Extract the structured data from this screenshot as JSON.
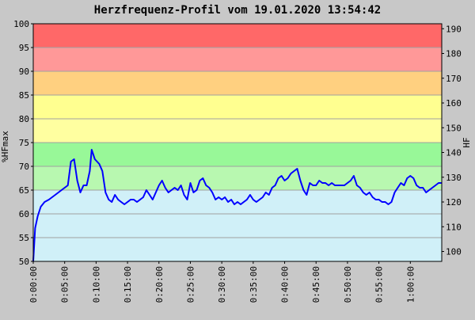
{
  "chart_data": {
    "type": "line",
    "title": "Herzfrequenz-Profil vom 19.01.2020 13:54:42",
    "ylabel_left": "%HFmax",
    "ylabel_right": "HF",
    "ylim_left": [
      50,
      100
    ],
    "ylim_right": [
      96,
      192
    ],
    "left_ticks": [
      50,
      55,
      60,
      65,
      70,
      75,
      80,
      85,
      90,
      95,
      100
    ],
    "right_ticks": [
      100,
      110,
      120,
      130,
      140,
      150,
      160,
      170,
      180,
      190
    ],
    "x_minutes_range": [
      0,
      65
    ],
    "x_ticks": [
      "0:00:00",
      "0:05:00",
      "0:10:00",
      "0:15:00",
      "0:20:00",
      "0:25:00",
      "0:30:00",
      "0:35:00",
      "0:40:00",
      "0:45:00",
      "0:50:00",
      "0:55:00",
      "1:00:00"
    ],
    "zones": [
      {
        "from": 50,
        "to": 65,
        "color": "#d0f0f8"
      },
      {
        "from": 65,
        "to": 70,
        "color": "#b8f8b0"
      },
      {
        "from": 70,
        "to": 75,
        "color": "#98f898"
      },
      {
        "from": 75,
        "to": 80,
        "color": "#ffffa0"
      },
      {
        "from": 80,
        "to": 85,
        "color": "#ffff90"
      },
      {
        "from": 85,
        "to": 90,
        "color": "#ffd080"
      },
      {
        "from": 90,
        "to": 95,
        "color": "#ff9898"
      },
      {
        "from": 95,
        "to": 100,
        "color": "#ff6868"
      }
    ],
    "series": [
      {
        "color": "#0000ff",
        "points": [
          [
            0.0,
            50.0
          ],
          [
            0.3,
            57.0
          ],
          [
            0.7,
            59.5
          ],
          [
            1.2,
            61.5
          ],
          [
            1.8,
            62.5
          ],
          [
            2.5,
            63.0
          ],
          [
            3.5,
            64.0
          ],
          [
            4.5,
            65.0
          ],
          [
            5.5,
            66.0
          ],
          [
            6.0,
            71.0
          ],
          [
            6.5,
            71.5
          ],
          [
            7.0,
            67.0
          ],
          [
            7.5,
            64.5
          ],
          [
            8.0,
            66.0
          ],
          [
            8.5,
            66.0
          ],
          [
            9.0,
            69.0
          ],
          [
            9.3,
            73.5
          ],
          [
            9.8,
            71.5
          ],
          [
            10.5,
            70.5
          ],
          [
            11.0,
            69.0
          ],
          [
            11.5,
            64.5
          ],
          [
            12.0,
            63.0
          ],
          [
            12.5,
            62.5
          ],
          [
            13.0,
            64.0
          ],
          [
            13.5,
            63.0
          ],
          [
            14.0,
            62.5
          ],
          [
            14.5,
            62.0
          ],
          [
            15.0,
            62.5
          ],
          [
            15.5,
            63.0
          ],
          [
            16.0,
            63.0
          ],
          [
            16.5,
            62.5
          ],
          [
            17.0,
            63.0
          ],
          [
            17.5,
            63.5
          ],
          [
            18.0,
            65.0
          ],
          [
            18.5,
            64.0
          ],
          [
            19.0,
            63.0
          ],
          [
            19.5,
            64.5
          ],
          [
            20.0,
            66.0
          ],
          [
            20.5,
            67.0
          ],
          [
            21.0,
            65.5
          ],
          [
            21.5,
            64.5
          ],
          [
            22.0,
            65.0
          ],
          [
            22.5,
            65.5
          ],
          [
            23.0,
            65.0
          ],
          [
            23.5,
            66.0
          ],
          [
            24.0,
            64.0
          ],
          [
            24.5,
            63.0
          ],
          [
            25.0,
            66.5
          ],
          [
            25.5,
            64.5
          ],
          [
            26.0,
            65.0
          ],
          [
            26.5,
            67.0
          ],
          [
            27.0,
            67.5
          ],
          [
            27.5,
            66.0
          ],
          [
            28.0,
            65.5
          ],
          [
            28.5,
            64.5
          ],
          [
            29.0,
            63.0
          ],
          [
            29.5,
            63.5
          ],
          [
            30.0,
            63.0
          ],
          [
            30.5,
            63.5
          ],
          [
            31.0,
            62.5
          ],
          [
            31.5,
            63.0
          ],
          [
            32.0,
            62.0
          ],
          [
            32.5,
            62.5
          ],
          [
            33.0,
            62.0
          ],
          [
            33.5,
            62.5
          ],
          [
            34.0,
            63.0
          ],
          [
            34.5,
            64.0
          ],
          [
            35.0,
            63.0
          ],
          [
            35.5,
            62.5
          ],
          [
            36.0,
            63.0
          ],
          [
            36.5,
            63.5
          ],
          [
            37.0,
            64.5
          ],
          [
            37.5,
            64.0
          ],
          [
            38.0,
            65.5
          ],
          [
            38.5,
            66.0
          ],
          [
            39.0,
            67.5
          ],
          [
            39.5,
            68.0
          ],
          [
            40.0,
            67.0
          ],
          [
            40.5,
            67.5
          ],
          [
            41.0,
            68.5
          ],
          [
            41.5,
            69.0
          ],
          [
            42.0,
            69.5
          ],
          [
            42.5,
            67.0
          ],
          [
            43.0,
            65.0
          ],
          [
            43.5,
            64.0
          ],
          [
            44.0,
            66.5
          ],
          [
            44.5,
            66.0
          ],
          [
            45.0,
            66.0
          ],
          [
            45.5,
            67.0
          ],
          [
            46.0,
            66.5
          ],
          [
            46.5,
            66.5
          ],
          [
            47.0,
            66.0
          ],
          [
            47.5,
            66.5
          ],
          [
            48.0,
            66.0
          ],
          [
            48.5,
            66.0
          ],
          [
            49.0,
            66.0
          ],
          [
            49.5,
            66.0
          ],
          [
            50.0,
            66.5
          ],
          [
            50.5,
            67.0
          ],
          [
            51.0,
            68.0
          ],
          [
            51.5,
            66.0
          ],
          [
            52.0,
            65.5
          ],
          [
            52.5,
            64.5
          ],
          [
            53.0,
            64.0
          ],
          [
            53.5,
            64.5
          ],
          [
            54.0,
            63.5
          ],
          [
            54.5,
            63.0
          ],
          [
            55.0,
            63.0
          ],
          [
            55.5,
            62.5
          ],
          [
            56.0,
            62.5
          ],
          [
            56.5,
            62.0
          ],
          [
            57.0,
            62.5
          ],
          [
            57.5,
            64.5
          ],
          [
            58.0,
            65.5
          ],
          [
            58.5,
            66.5
          ],
          [
            59.0,
            66.0
          ],
          [
            59.5,
            67.5
          ],
          [
            60.0,
            68.0
          ],
          [
            60.5,
            67.5
          ],
          [
            61.0,
            66.0
          ],
          [
            61.5,
            65.5
          ],
          [
            62.0,
            65.5
          ],
          [
            62.5,
            64.5
          ],
          [
            63.0,
            65.0
          ],
          [
            63.5,
            65.5
          ],
          [
            64.0,
            66.0
          ],
          [
            64.5,
            66.5
          ],
          [
            65.0,
            66.5
          ]
        ]
      }
    ]
  }
}
